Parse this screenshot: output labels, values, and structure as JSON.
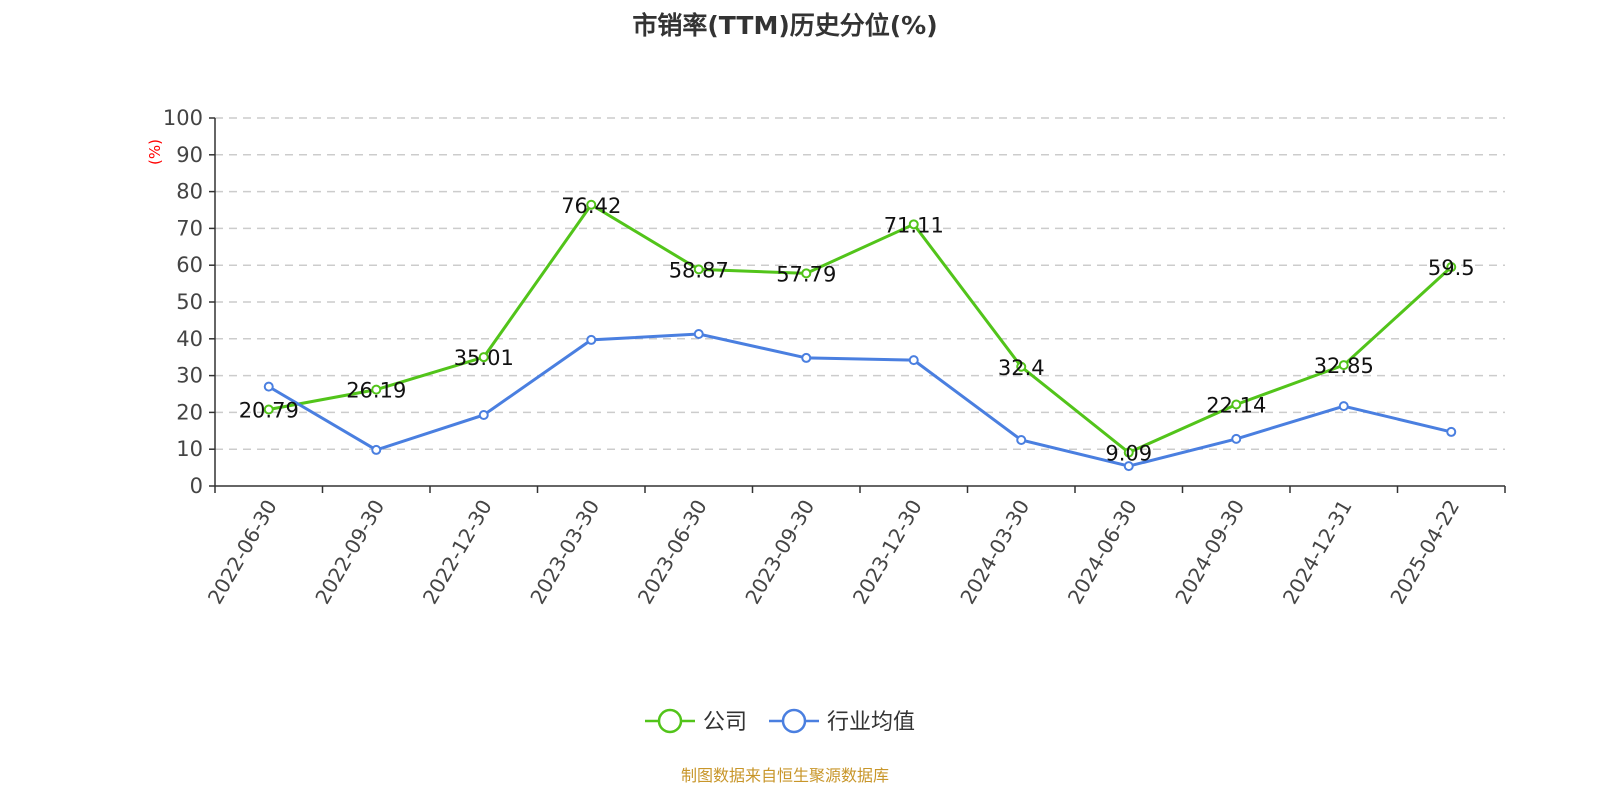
{
  "chart_data": {
    "type": "line",
    "title": "市销率(TTM)历史分位(%)",
    "ylabel": "(%)",
    "ylim": [
      0,
      100
    ],
    "yticks": [
      0,
      10,
      20,
      30,
      40,
      50,
      60,
      70,
      80,
      90,
      100
    ],
    "grid": true,
    "legend_position": "bottom",
    "categories": [
      "2022-06-30",
      "2022-09-30",
      "2022-12-30",
      "2023-03-30",
      "2023-06-30",
      "2023-09-30",
      "2023-12-30",
      "2024-03-30",
      "2024-06-30",
      "2024-09-30",
      "2024-12-31",
      "2025-04-22"
    ],
    "series": [
      {
        "name": "公司",
        "color": "#52c41a",
        "labels": true,
        "values": [
          20.79,
          26.19,
          35.01,
          76.42,
          58.87,
          57.79,
          71.11,
          32.4,
          9.09,
          22.14,
          32.85,
          59.5
        ]
      },
      {
        "name": "行业均值",
        "color": "#4a7fe0",
        "labels": false,
        "values": [
          27.0,
          9.8,
          19.3,
          39.7,
          41.3,
          34.8,
          34.2,
          12.5,
          5.4,
          12.8,
          21.7,
          14.7
        ]
      }
    ]
  },
  "source": "制图数据来自恒生聚源数据库"
}
